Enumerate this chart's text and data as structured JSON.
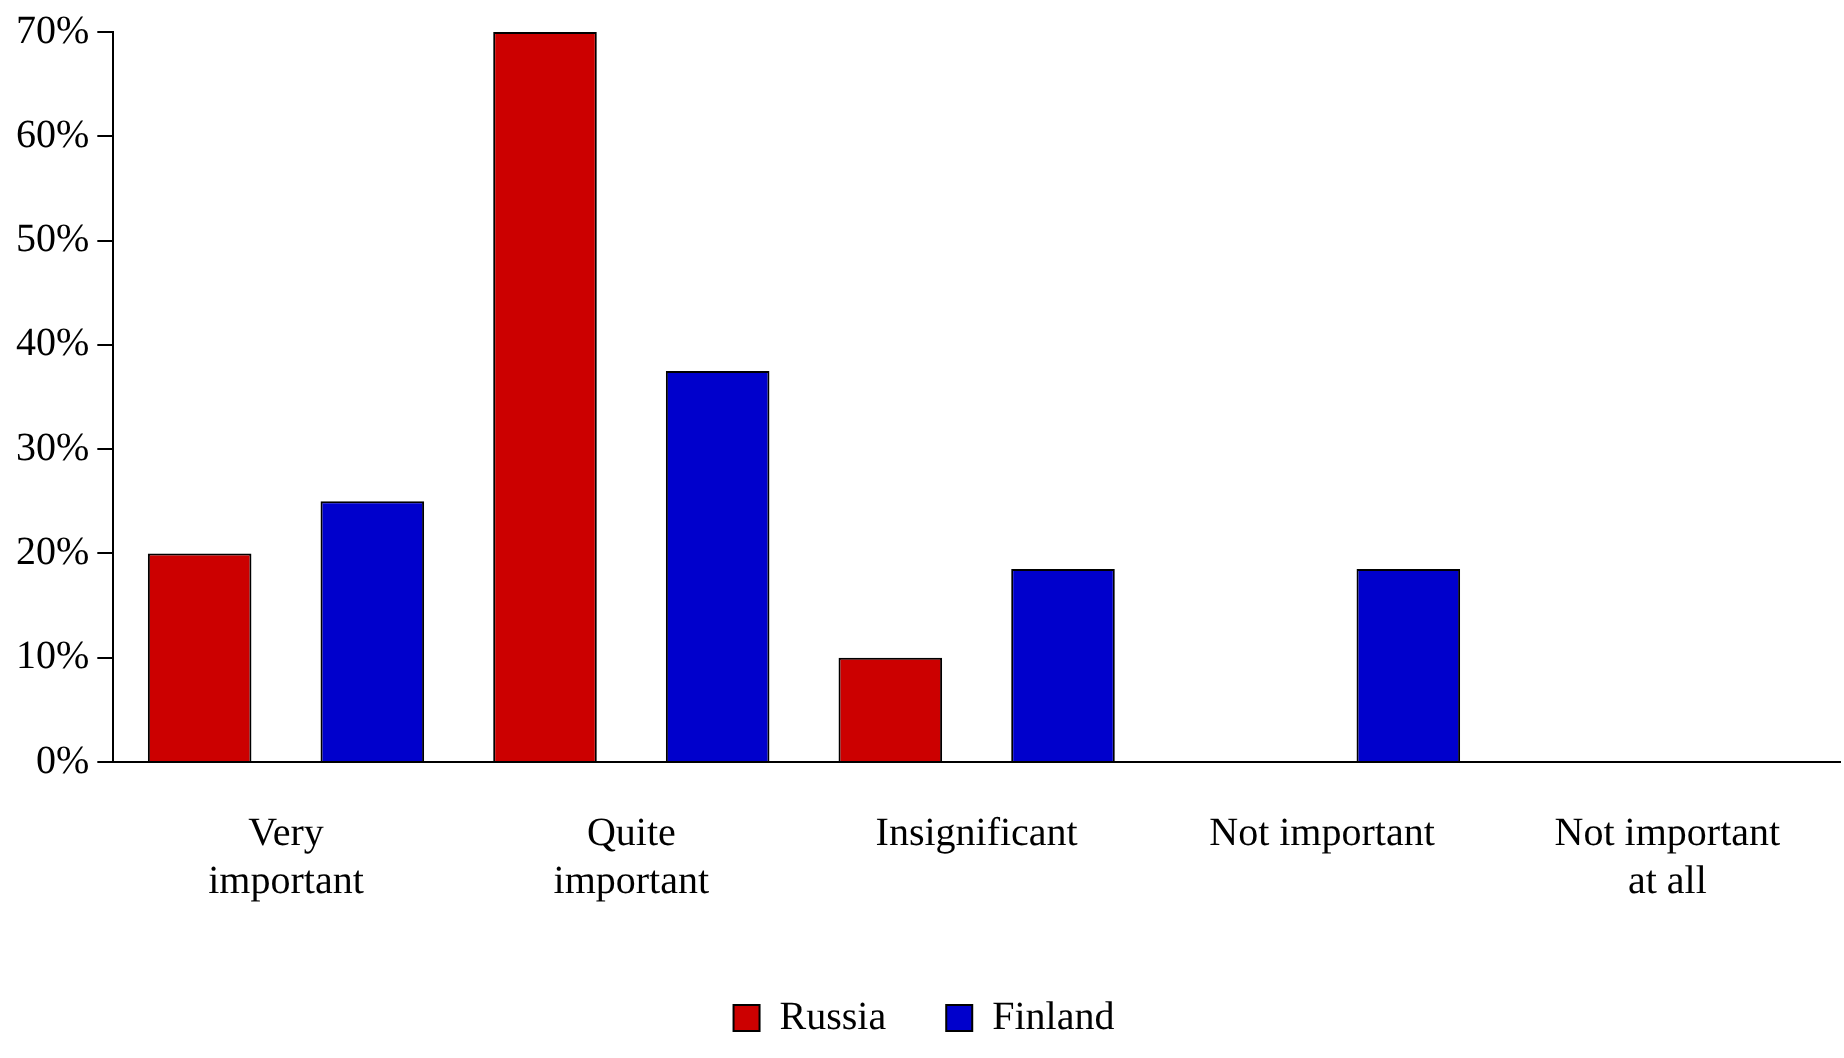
{
  "chart_data": {
    "type": "bar",
    "categories": [
      "Very important",
      "Quite important",
      "Insignificant",
      "Not important",
      "Not important at all"
    ],
    "series": [
      {
        "name": "Russia",
        "color": "#cc0000",
        "values": [
          20,
          70,
          10,
          0,
          0
        ]
      },
      {
        "name": "Finland",
        "color": "#0000cc",
        "values": [
          25,
          37.5,
          18.5,
          18.5,
          0
        ]
      }
    ],
    "ylim": [
      0,
      70
    ],
    "yticks": [
      {
        "value": 0,
        "label": "0%"
      },
      {
        "value": 10,
        "label": "10%"
      },
      {
        "value": 20,
        "label": "20%"
      },
      {
        "value": 30,
        "label": "30%"
      },
      {
        "value": 40,
        "label": "40%"
      },
      {
        "value": 50,
        "label": "50%"
      },
      {
        "value": 60,
        "label": "60%"
      },
      {
        "value": 70,
        "label": "70%"
      }
    ],
    "grid": false,
    "legend": "bottom"
  }
}
